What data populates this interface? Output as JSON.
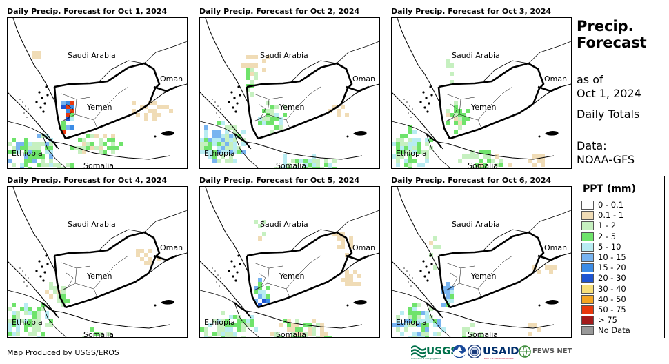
{
  "panels": [
    {
      "title": "Daily Precip. Forecast for Oct 1, 2024",
      "day": 1
    },
    {
      "title": "Daily Precip. Forecast for Oct 2, 2024",
      "day": 2
    },
    {
      "title": "Daily Precip. Forecast for Oct 3, 2024",
      "day": 3
    },
    {
      "title": "Daily Precip. Forecast for Oct 4, 2024",
      "day": 4
    },
    {
      "title": "Daily Precip. Forecast for Oct 5, 2024",
      "day": 5
    },
    {
      "title": "Daily Precip. Forecast for Oct 6, 2024",
      "day": 6
    }
  ],
  "map_labels": {
    "saudi": "Saudi Arabia",
    "oman": "Oman",
    "yemen": "Yemen",
    "ethiopia": "Ethiopia",
    "somalia": "Somalia"
  },
  "side": {
    "title_line1": "Precip.",
    "title_line2": "Forecast",
    "as_of": "as of",
    "date": "Oct 1, 2024",
    "totals": "Daily Totals",
    "data_label": "Data:",
    "data_source": "NOAA-GFS"
  },
  "legend": {
    "title": "PPT (mm)",
    "items": [
      {
        "label": "0 - 0.1",
        "color": "#ffffff"
      },
      {
        "label": "0.1 - 1",
        "color": "#f0dcb6"
      },
      {
        "label": "1 - 2",
        "color": "#c6f0c0"
      },
      {
        "label": "2 - 5",
        "color": "#6fe36b"
      },
      {
        "label": "5 - 10",
        "color": "#b8ecf2"
      },
      {
        "label": "10 - 15",
        "color": "#78b4f0"
      },
      {
        "label": "15 - 20",
        "color": "#3c8ce6"
      },
      {
        "label": "20 - 30",
        "color": "#1e55d2"
      },
      {
        "label": "30 - 40",
        "color": "#f8e07a"
      },
      {
        "label": "40 - 50",
        "color": "#f5a623"
      },
      {
        "label": "50 - 75",
        "color": "#e8380d"
      },
      {
        "label": "> 75",
        "color": "#a31a1a"
      },
      {
        "label": "No Data",
        "color": "#999999"
      }
    ]
  },
  "credit": "Map Produced by USGS/EROS",
  "logos": {
    "usgs": "USGS",
    "usgs_tag": "science for a changing world",
    "usaid": "USAID",
    "usaid_tag": "FROM THE AMERICAN PEOPLE",
    "fews": "FEWS NET"
  }
}
